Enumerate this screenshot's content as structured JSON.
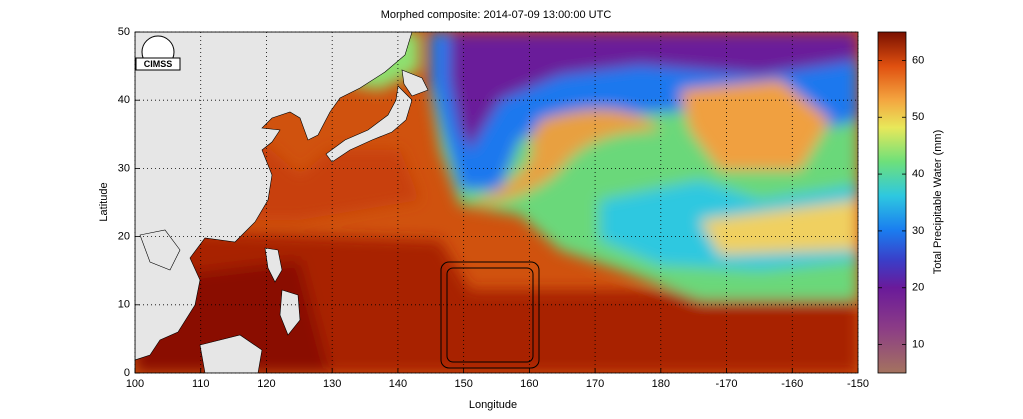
{
  "chart_data": {
    "type": "map",
    "title": "Morphed composite: 2014-07-09 13:00:00 UTC",
    "logo_text": "CIMSS",
    "x_label": "Longitude",
    "y_label": "Latitude",
    "xlim": [
      100,
      210
    ],
    "xticks": [
      100,
      110,
      120,
      130,
      140,
      150,
      160,
      170,
      180,
      {
        "value": 190,
        "label": "-170"
      },
      {
        "value": 200,
        "label": "-160"
      },
      {
        "value": 210,
        "label": "-150"
      }
    ],
    "ylim": [
      0,
      50
    ],
    "yticks": [
      0,
      10,
      20,
      30,
      40,
      50
    ],
    "grid": true,
    "colorbar": {
      "label": "Total Precipitable Water (mm)",
      "lim": [
        5,
        65
      ],
      "ticks": [
        10,
        20,
        30,
        40,
        50,
        60
      ]
    }
  }
}
